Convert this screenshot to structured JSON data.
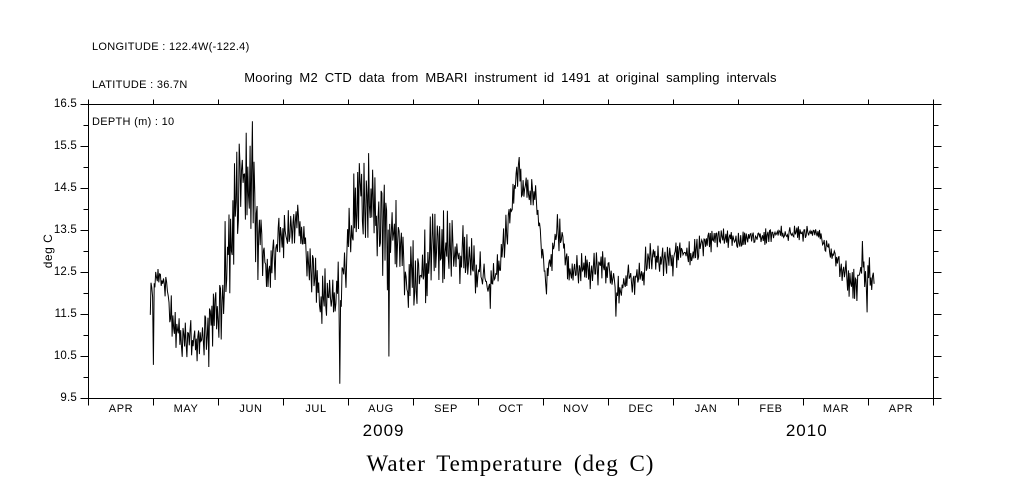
{
  "header": {
    "longitude_label": "LONGITUDE : 122.4W(-122.4)",
    "latitude_label": "LATITUDE : 36.7N",
    "depth_label": "DEPTH (m) : 10"
  },
  "plot_title": "Mooring M2 CTD data from MBARI instrument id 1491 at original sampling intervals",
  "bottom_title": "Water Temperature (deg C)",
  "chart_data": {
    "type": "line",
    "title": "Mooring M2 CTD data from MBARI instrument id 1491 at original sampling intervals",
    "xlabel": "",
    "ylabel": "deg C",
    "ylim": [
      9.5,
      16.5
    ],
    "ytick_major": [
      9.5,
      10.5,
      11.5,
      12.5,
      13.5,
      14.5,
      15.5,
      16.5
    ],
    "ytick_minor": [
      10,
      11,
      12,
      13,
      14,
      15,
      16
    ],
    "x_months": [
      "APR",
      "MAY",
      "JUN",
      "JUL",
      "AUG",
      "SEP",
      "OCT",
      "NOV",
      "DEC",
      "JAN",
      "FEB",
      "MAR",
      "APR"
    ],
    "year_labels": [
      {
        "text": "2009",
        "t": 4.54
      },
      {
        "text": "2010",
        "t": 11.05
      }
    ],
    "background": "#ffffff",
    "axis_color": "#000000",
    "line_color": "#000000",
    "grid": false,
    "legend": false,
    "series": {
      "name": "water temperature (deg C)",
      "units": "deg C",
      "t_units": "months from 2009-04-01 (0 = APR 2009 tick, 1 month per unit)",
      "sample_step": 0.012,
      "keypoints_format": "[t, center_degC, noise_half_amplitude_degC]",
      "keypoints": [
        [
          0.95,
          11.8,
          0.55
        ],
        [
          1.03,
          12.25,
          0.4
        ],
        [
          1.12,
          12.35,
          0.3
        ],
        [
          1.2,
          12.2,
          0.4
        ],
        [
          1.3,
          11.15,
          0.55
        ],
        [
          1.42,
          10.9,
          0.4
        ],
        [
          1.55,
          10.95,
          0.5
        ],
        [
          1.68,
          10.8,
          0.5
        ],
        [
          1.8,
          11.1,
          0.6
        ],
        [
          1.92,
          11.45,
          0.8
        ],
        [
          2.04,
          11.95,
          1.0
        ],
        [
          2.16,
          13.1,
          1.4
        ],
        [
          2.3,
          14.3,
          1.5
        ],
        [
          2.42,
          14.9,
          1.3
        ],
        [
          2.52,
          14.6,
          1.5
        ],
        [
          2.62,
          13.3,
          1.1
        ],
        [
          2.74,
          12.65,
          0.85
        ],
        [
          2.88,
          13.1,
          0.7
        ],
        [
          3.0,
          13.3,
          0.7
        ],
        [
          3.12,
          13.6,
          0.5
        ],
        [
          3.25,
          13.7,
          0.6
        ],
        [
          3.4,
          12.7,
          0.9
        ],
        [
          3.55,
          12.0,
          0.7
        ],
        [
          3.7,
          11.9,
          0.65
        ],
        [
          3.85,
          12.1,
          0.85
        ],
        [
          4.0,
          13.2,
          1.1
        ],
        [
          4.15,
          14.4,
          1.2
        ],
        [
          4.3,
          14.3,
          1.3
        ],
        [
          4.45,
          13.7,
          1.2
        ],
        [
          4.6,
          13.4,
          1.3
        ],
        [
          4.75,
          13.5,
          1.1
        ],
        [
          4.9,
          12.2,
          1.0
        ],
        [
          5.05,
          12.5,
          0.8
        ],
        [
          5.2,
          12.7,
          1.0
        ],
        [
          5.35,
          13.0,
          1.0
        ],
        [
          5.5,
          13.1,
          0.9
        ],
        [
          5.65,
          12.9,
          0.8
        ],
        [
          5.8,
          13.0,
          0.7
        ],
        [
          5.95,
          12.6,
          0.8
        ],
        [
          6.08,
          12.3,
          0.6
        ],
        [
          6.18,
          12.1,
          0.5
        ],
        [
          6.3,
          12.6,
          0.6
        ],
        [
          6.4,
          13.3,
          0.55
        ],
        [
          6.5,
          14.1,
          0.45
        ],
        [
          6.6,
          14.9,
          0.35
        ],
        [
          6.7,
          14.55,
          0.45
        ],
        [
          6.8,
          14.4,
          0.45
        ],
        [
          6.9,
          14.15,
          0.4
        ],
        [
          6.98,
          13.0,
          0.4
        ],
        [
          7.05,
          12.15,
          0.35
        ],
        [
          7.15,
          13.3,
          0.55
        ],
        [
          7.25,
          13.45,
          0.45
        ],
        [
          7.35,
          12.8,
          0.4
        ],
        [
          7.45,
          12.55,
          0.4
        ],
        [
          7.6,
          12.7,
          0.4
        ],
        [
          7.75,
          12.4,
          0.45
        ],
        [
          7.9,
          12.8,
          0.45
        ],
        [
          8.05,
          12.4,
          0.35
        ],
        [
          8.15,
          12.0,
          0.4
        ],
        [
          8.28,
          12.45,
          0.35
        ],
        [
          8.4,
          12.3,
          0.4
        ],
        [
          8.52,
          12.45,
          0.45
        ],
        [
          8.65,
          12.95,
          0.55
        ],
        [
          8.8,
          12.8,
          0.4
        ],
        [
          8.95,
          12.75,
          0.4
        ],
        [
          9.1,
          13.05,
          0.35
        ],
        [
          9.25,
          12.9,
          0.35
        ],
        [
          9.4,
          13.05,
          0.35
        ],
        [
          9.55,
          13.25,
          0.3
        ],
        [
          9.7,
          13.35,
          0.22
        ],
        [
          9.85,
          13.3,
          0.22
        ],
        [
          10.0,
          13.15,
          0.28
        ],
        [
          10.15,
          13.4,
          0.18
        ],
        [
          10.3,
          13.35,
          0.2
        ],
        [
          10.45,
          13.35,
          0.2
        ],
        [
          10.6,
          13.45,
          0.18
        ],
        [
          10.75,
          13.4,
          0.18
        ],
        [
          10.9,
          13.4,
          0.2
        ],
        [
          11.05,
          13.45,
          0.18
        ],
        [
          11.2,
          13.45,
          0.2
        ],
        [
          11.3,
          13.25,
          0.22
        ],
        [
          11.4,
          13.05,
          0.25
        ],
        [
          11.5,
          12.9,
          0.3
        ],
        [
          11.6,
          12.6,
          0.35
        ],
        [
          11.7,
          12.3,
          0.4
        ],
        [
          11.8,
          12.2,
          0.45
        ],
        [
          11.88,
          12.65,
          0.55
        ],
        [
          11.96,
          12.5,
          0.55
        ],
        [
          12.04,
          12.3,
          0.45
        ],
        [
          12.08,
          12.35,
          0.25
        ]
      ],
      "spikes_format": "[t, value_degC] single-sample extreme excursions",
      "spikes": [
        [
          1.0,
          10.3
        ],
        [
          1.85,
          10.25
        ],
        [
          2.52,
          16.1
        ],
        [
          3.87,
          9.85
        ],
        [
          4.62,
          10.5
        ],
        [
          6.62,
          15.25
        ],
        [
          8.12,
          11.45
        ],
        [
          11.9,
          13.25
        ],
        [
          11.98,
          11.55
        ]
      ]
    }
  }
}
